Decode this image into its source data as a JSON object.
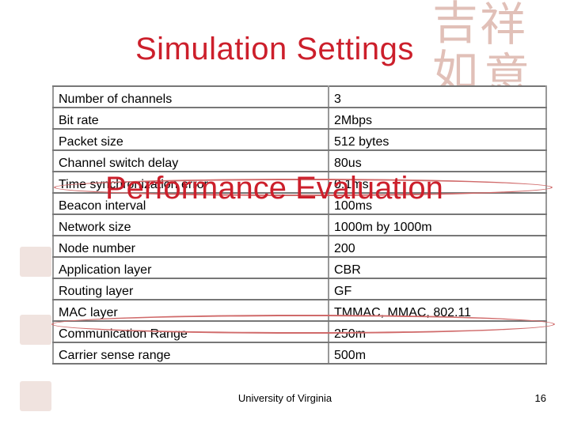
{
  "title": "Simulation Settings",
  "overlay_heading": "Performance Evaluation",
  "settings": [
    {
      "name": "Number of channels",
      "value": "3"
    },
    {
      "name": "Bit rate",
      "value": "2Mbps"
    },
    {
      "name": "Packet size",
      "value": "512 bytes"
    },
    {
      "name": "Channel switch delay",
      "value": "80us"
    },
    {
      "name": "Time synchronization error",
      "value": "0.1ms"
    },
    {
      "name": "Beacon interval",
      "value": "100ms"
    },
    {
      "name": "Network size",
      "value": "1000m by 1000m"
    },
    {
      "name": "Node number",
      "value": "200"
    },
    {
      "name": "Application layer",
      "value": "CBR"
    },
    {
      "name": "Routing layer",
      "value": "GF"
    },
    {
      "name": "MAC layer",
      "value": "TMMAC, MMAC, 802.11"
    },
    {
      "name": "Communication  Range",
      "value": "250m"
    },
    {
      "name": "Carrier sense range",
      "value": "500m"
    }
  ],
  "footer": {
    "institution": "University of Virginia",
    "page_number": "16"
  },
  "colors": {
    "title": "#cc1f2b",
    "highlight_ellipse": "#d06a6a",
    "decoration": "#c98e7f"
  }
}
